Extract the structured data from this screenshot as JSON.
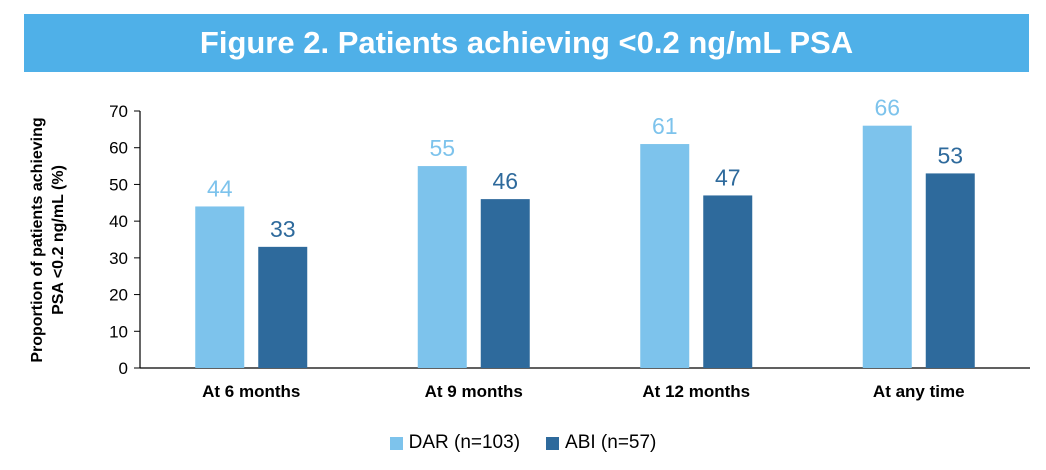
{
  "colors": {
    "banner": "#4fb0e8",
    "dar": "#7dc3ec",
    "abi": "#2e6a9c",
    "axis": "#000000"
  },
  "chart_data": {
    "type": "bar",
    "title": "Figure 2. Patients achieving <0.2 ng/mL PSA",
    "xlabel": "",
    "ylabel": "Proportion of patients achieving PSA <0.2 ng/mL (%)",
    "ylabel_lines": [
      "Proportion of patients achieving",
      "PSA <0.2 ng/mL (%)"
    ],
    "ylim": [
      0,
      70
    ],
    "yticks": [
      0,
      10,
      20,
      30,
      40,
      50,
      60,
      70
    ],
    "categories": [
      "At 6 months",
      "At 9 months",
      "At 12 months",
      "At any time"
    ],
    "series": [
      {
        "name": "DAR (n=103)",
        "values": [
          44,
          55,
          61,
          66
        ],
        "color": "#7dc3ec"
      },
      {
        "name": "ABI (n=57)",
        "values": [
          33,
          46,
          47,
          53
        ],
        "color": "#2e6a9c"
      }
    ],
    "grid": false,
    "legend_position": "bottom"
  }
}
